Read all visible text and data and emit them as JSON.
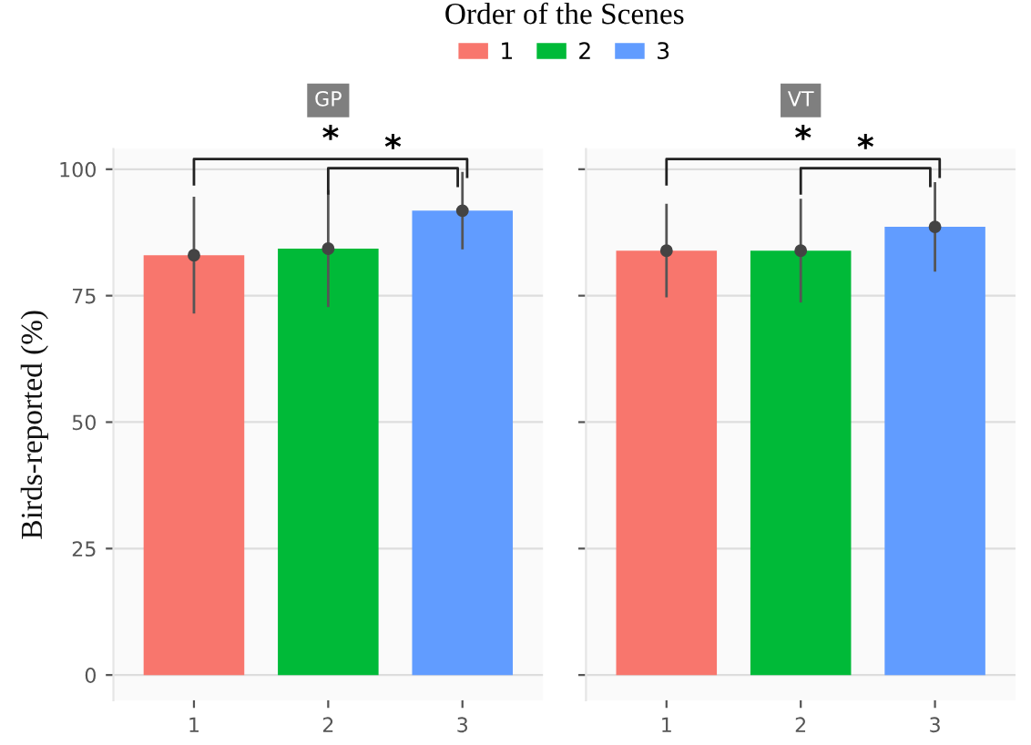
{
  "chart_data": [
    {
      "type": "bar",
      "title": "GP",
      "ylabel": "Birds-reported (%)",
      "legend_title": "Order of the Scenes",
      "legend": "top",
      "categories": [
        "1",
        "2",
        "3"
      ],
      "series": [
        {
          "name": "1",
          "color": "#f8766d",
          "values": [
            83.0,
            null,
            null
          ],
          "errors": [
            11.3,
            null,
            null
          ]
        },
        {
          "name": "2",
          "color": "#00ba38",
          "values": [
            null,
            84.3,
            null
          ],
          "errors": [
            null,
            11.3,
            null
          ]
        },
        {
          "name": "3",
          "color": "#619cff",
          "values": [
            null,
            null,
            91.8
          ],
          "errors": [
            null,
            null,
            7.4
          ]
        },
        {
          "type": "scatter",
          "x": [
            "1",
            "2",
            "3"
          ],
          "color": "#444444",
          "values": [
            83.0,
            84.3,
            91.8
          ]
        }
      ],
      "ylim": [
        -5,
        104
      ],
      "yticks": [
        0,
        25,
        50,
        75,
        100
      ],
      "grid": "y",
      "marker": "circle",
      "annotations": [
        "*",
        "*"
      ]
    },
    {
      "type": "bar",
      "title": "VT",
      "categories": [
        "1",
        "2",
        "3"
      ],
      "series": [
        {
          "color": "#f8766d",
          "values": [
            83.9,
            null,
            null
          ],
          "errors": [
            9.0,
            null,
            null
          ]
        },
        {
          "color": "#00ba38",
          "values": [
            null,
            83.9,
            null
          ],
          "errors": [
            null,
            10.0,
            null
          ]
        },
        {
          "color": "#619cff",
          "values": [
            null,
            null,
            88.6
          ],
          "errors": [
            null,
            null,
            8.6
          ]
        },
        {
          "type": "scatter",
          "x": [
            "1",
            "2",
            "3"
          ],
          "color": "#444444",
          "values": [
            83.9,
            83.9,
            88.6
          ]
        }
      ],
      "ylim": [
        -5,
        104
      ],
      "yticks": [
        0,
        25,
        50,
        75,
        100
      ],
      "grid": "y",
      "marker": "circle",
      "tick_labels": "x",
      "annotations": [
        "*",
        "*"
      ]
    }
  ]
}
